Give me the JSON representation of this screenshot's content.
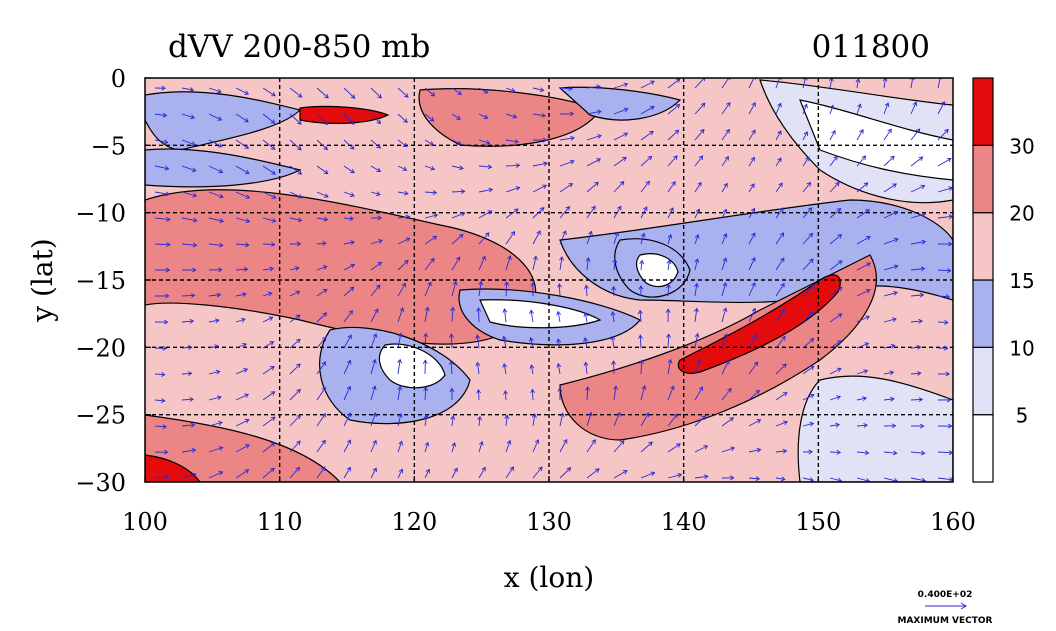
{
  "chart_data": {
    "type": "heatmap",
    "title": "dVV 200-850 mb",
    "timestamp": "011800",
    "xlabel": "x (lon)",
    "ylabel": "y (lat)",
    "xlim": [
      100,
      160
    ],
    "ylim": [
      -30,
      0
    ],
    "x_ticks": [
      100,
      110,
      120,
      130,
      140,
      150,
      160
    ],
    "y_ticks": [
      0,
      -5,
      -10,
      -15,
      -20,
      -25,
      -30
    ],
    "x_tick_labels": [
      "100",
      "110",
      "120",
      "130",
      "140",
      "150",
      "160"
    ],
    "y_tick_labels": [
      "0",
      "−5",
      "−10",
      "−15",
      "−20",
      "−25",
      "−30"
    ],
    "grid": true,
    "vectors": true,
    "colorbar": {
      "levels": [
        0,
        5,
        10,
        15,
        20,
        30,
        40
      ],
      "labels": [
        "5",
        "10",
        "15",
        "20",
        "30"
      ],
      "colors": [
        "#ffffff",
        "#e2e2f6",
        "#a9b1ef",
        "#f6c6c6",
        "#ec8686",
        "#e30b0b"
      ]
    },
    "vector_scale": {
      "value_label": "0.400E+02",
      "caption": "MAXIMUM VECTOR"
    }
  }
}
